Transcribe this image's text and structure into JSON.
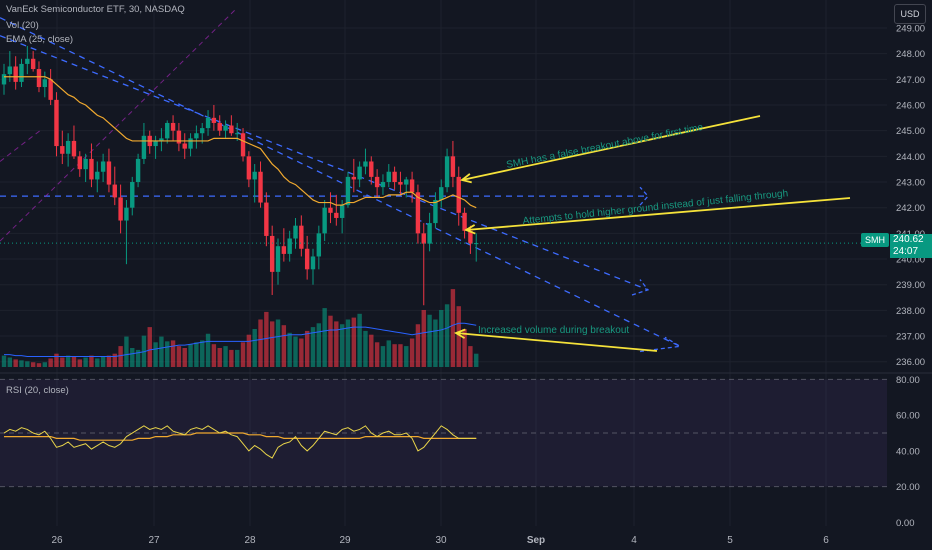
{
  "header": {
    "title": "VanEck Semiconductor ETF, 30, NASDAQ",
    "vol_label": "Vol (20)",
    "ema_label": "EMA (25, close)",
    "rsi_label": "RSI (20, close)",
    "currency_button": "USD"
  },
  "price_tag": {
    "symbol": "SMH",
    "price": "240.62",
    "countdown": "24:07"
  },
  "colors": {
    "up": "#089981",
    "down": "#f23645",
    "ema": "#f0a92f",
    "volume_ma": "#2962ff",
    "trend": "#3d6bff",
    "annotation": "#f5e23a",
    "annotation_text": "#18977f",
    "rsi_line": "#e8d44a",
    "rsi_ma": "#f0a92f",
    "background": "#131722"
  },
  "chart_data": {
    "type": "candlestick",
    "x_ticks": [
      "26",
      "27",
      "28",
      "29",
      "30",
      "Sep",
      "4",
      "5",
      "6"
    ],
    "price_ylim": [
      235.6,
      249.7
    ],
    "price_ticks": [
      "236.00",
      "237.00",
      "238.00",
      "239.00",
      "240.00",
      "241.00",
      "242.00",
      "243.00",
      "244.00",
      "245.00",
      "246.00",
      "247.00",
      "248.00",
      "249.00"
    ],
    "rsi_ylim": [
      -2,
      83
    ],
    "rsi_ticks": [
      "0.00",
      "20.00",
      "40.00",
      "60.00",
      "80.00"
    ],
    "rsi_bands": [
      20,
      50,
      80
    ],
    "current_price": 240.62,
    "candles": [
      [
        246.8,
        247.6,
        246.4,
        247.2
      ],
      [
        247.2,
        248.1,
        246.9,
        247.5
      ],
      [
        247.5,
        247.9,
        246.6,
        246.9
      ],
      [
        246.9,
        247.8,
        246.7,
        247.6
      ],
      [
        247.6,
        248.3,
        247.2,
        247.8
      ],
      [
        247.8,
        248.1,
        247.3,
        247.4
      ],
      [
        247.4,
        247.7,
        246.5,
        246.7
      ],
      [
        246.7,
        247.3,
        246.3,
        247.0
      ],
      [
        247.0,
        247.4,
        246.0,
        246.2
      ],
      [
        246.2,
        246.5,
        244.0,
        244.4
      ],
      [
        244.4,
        245.0,
        243.7,
        244.1
      ],
      [
        244.1,
        244.9,
        243.6,
        244.6
      ],
      [
        244.6,
        245.2,
        243.9,
        244.0
      ],
      [
        244.0,
        244.2,
        243.2,
        243.5
      ],
      [
        243.5,
        244.1,
        243.0,
        243.9
      ],
      [
        243.9,
        244.5,
        242.8,
        243.1
      ],
      [
        243.1,
        243.8,
        242.6,
        243.4
      ],
      [
        243.4,
        244.1,
        243.0,
        243.8
      ],
      [
        243.8,
        244.3,
        242.6,
        242.9
      ],
      [
        242.9,
        243.6,
        242.1,
        242.4
      ],
      [
        242.4,
        242.9,
        241.0,
        241.5
      ],
      [
        241.5,
        242.3,
        239.8,
        242.0
      ],
      [
        242.0,
        243.2,
        241.7,
        243.0
      ],
      [
        243.0,
        244.1,
        242.8,
        243.9
      ],
      [
        243.9,
        245.3,
        243.7,
        244.8
      ],
      [
        244.8,
        245.0,
        244.1,
        244.4
      ],
      [
        244.4,
        244.8,
        243.9,
        244.6
      ],
      [
        244.6,
        245.1,
        244.2,
        244.7
      ],
      [
        244.7,
        245.4,
        244.5,
        245.3
      ],
      [
        245.3,
        245.6,
        244.6,
        245.0
      ],
      [
        245.0,
        245.3,
        244.2,
        244.5
      ],
      [
        244.5,
        244.9,
        243.9,
        244.3
      ],
      [
        244.3,
        244.9,
        244.0,
        244.7
      ],
      [
        244.7,
        245.2,
        244.3,
        244.9
      ],
      [
        244.9,
        245.3,
        244.5,
        245.1
      ],
      [
        245.1,
        245.8,
        244.8,
        245.5
      ],
      [
        245.5,
        246.0,
        245.0,
        245.3
      ],
      [
        245.3,
        245.6,
        244.8,
        245.0
      ],
      [
        245.0,
        245.4,
        244.7,
        245.2
      ],
      [
        245.2,
        245.6,
        244.8,
        244.9
      ],
      [
        244.9,
        245.3,
        244.6,
        244.9
      ],
      [
        244.9,
        245.1,
        243.8,
        244.0
      ],
      [
        244.0,
        244.2,
        242.8,
        243.1
      ],
      [
        243.1,
        243.7,
        242.2,
        243.4
      ],
      [
        243.4,
        243.8,
        242.0,
        242.2
      ],
      [
        242.2,
        242.6,
        240.5,
        240.9
      ],
      [
        240.9,
        241.3,
        238.6,
        239.5
      ],
      [
        239.5,
        240.8,
        239.0,
        240.5
      ],
      [
        240.5,
        241.2,
        239.9,
        240.2
      ],
      [
        240.2,
        241.1,
        239.9,
        240.8
      ],
      [
        240.8,
        241.6,
        240.4,
        241.3
      ],
      [
        241.3,
        241.7,
        240.1,
        240.4
      ],
      [
        240.4,
        240.9,
        239.2,
        239.6
      ],
      [
        239.6,
        240.4,
        239.0,
        240.1
      ],
      [
        240.1,
        241.3,
        239.6,
        241.0
      ],
      [
        241.0,
        242.3,
        240.7,
        242.0
      ],
      [
        242.0,
        242.6,
        241.4,
        241.8
      ],
      [
        241.8,
        242.5,
        241.3,
        241.6
      ],
      [
        241.6,
        242.3,
        241.0,
        242.1
      ],
      [
        242.1,
        243.4,
        242.0,
        243.2
      ],
      [
        243.2,
        243.9,
        242.6,
        243.1
      ],
      [
        243.1,
        243.8,
        242.8,
        243.6
      ],
      [
        243.6,
        244.3,
        243.3,
        243.8
      ],
      [
        243.8,
        244.0,
        242.9,
        243.2
      ],
      [
        243.2,
        243.5,
        242.4,
        242.8
      ],
      [
        242.8,
        243.3,
        242.5,
        243.0
      ],
      [
        243.0,
        243.7,
        242.8,
        243.4
      ],
      [
        243.4,
        243.6,
        242.7,
        243.0
      ],
      [
        243.0,
        243.4,
        242.5,
        242.9
      ],
      [
        242.9,
        243.2,
        242.4,
        243.1
      ],
      [
        243.1,
        243.4,
        242.2,
        242.6
      ],
      [
        242.6,
        242.9,
        240.6,
        241.0
      ],
      [
        241.0,
        241.4,
        238.2,
        240.6
      ],
      [
        240.6,
        241.8,
        240.3,
        241.4
      ],
      [
        241.4,
        242.6,
        241.2,
        242.3
      ],
      [
        242.3,
        243.1,
        242.0,
        242.8
      ],
      [
        242.8,
        244.3,
        242.6,
        244.0
      ],
      [
        244.0,
        244.6,
        242.8,
        243.2
      ],
      [
        243.2,
        243.6,
        241.3,
        241.8
      ],
      [
        241.8,
        242.0,
        240.8,
        241.1
      ],
      [
        241.1,
        241.3,
        240.2,
        240.6
      ],
      [
        240.6,
        241.0,
        239.9,
        240.62
      ]
    ],
    "ema": [
      247.1,
      247.1,
      247.1,
      247.1,
      247.1,
      247.1,
      247.1,
      247.1,
      247.0,
      246.8,
      246.6,
      246.4,
      246.3,
      246.1,
      246.0,
      245.8,
      245.6,
      245.5,
      245.3,
      245.1,
      244.9,
      244.7,
      244.6,
      244.6,
      244.6,
      244.6,
      244.6,
      244.6,
      244.6,
      244.6,
      244.6,
      244.6,
      244.6,
      244.6,
      244.6,
      244.6,
      244.7,
      244.7,
      244.7,
      244.7,
      244.7,
      244.6,
      244.5,
      244.4,
      244.3,
      244.0,
      243.7,
      243.5,
      243.2,
      243.0,
      242.9,
      242.7,
      242.5,
      242.3,
      242.2,
      242.2,
      242.2,
      242.1,
      242.1,
      242.2,
      242.2,
      242.3,
      242.4,
      242.4,
      242.4,
      242.4,
      242.5,
      242.5,
      242.5,
      242.6,
      242.6,
      242.4,
      242.3,
      242.2,
      242.2,
      242.3,
      242.4,
      242.5,
      242.4,
      242.3,
      242.1,
      242.0
    ],
    "volume": [
      0.12,
      0.1,
      0.08,
      0.07,
      0.06,
      0.05,
      0.04,
      0.05,
      0.09,
      0.14,
      0.1,
      0.12,
      0.11,
      0.08,
      0.1,
      0.12,
      0.09,
      0.11,
      0.12,
      0.14,
      0.22,
      0.32,
      0.2,
      0.18,
      0.33,
      0.42,
      0.26,
      0.32,
      0.27,
      0.28,
      0.22,
      0.2,
      0.24,
      0.26,
      0.28,
      0.35,
      0.24,
      0.2,
      0.22,
      0.18,
      0.18,
      0.26,
      0.34,
      0.4,
      0.5,
      0.58,
      0.48,
      0.5,
      0.44,
      0.36,
      0.32,
      0.3,
      0.38,
      0.42,
      0.46,
      0.62,
      0.54,
      0.48,
      0.45,
      0.5,
      0.52,
      0.56,
      0.38,
      0.34,
      0.26,
      0.22,
      0.28,
      0.24,
      0.24,
      0.22,
      0.3,
      0.45,
      0.6,
      0.55,
      0.5,
      0.6,
      0.66,
      0.82,
      0.64,
      0.4,
      0.22,
      0.14
    ],
    "volume_ma": [
      0.13,
      0.13,
      0.12,
      0.12,
      0.11,
      0.11,
      0.11,
      0.11,
      0.11,
      0.11,
      0.11,
      0.11,
      0.11,
      0.11,
      0.11,
      0.11,
      0.11,
      0.11,
      0.11,
      0.11,
      0.12,
      0.13,
      0.14,
      0.15,
      0.16,
      0.18,
      0.19,
      0.2,
      0.21,
      0.22,
      0.23,
      0.23,
      0.24,
      0.25,
      0.26,
      0.27,
      0.27,
      0.27,
      0.27,
      0.27,
      0.27,
      0.27,
      0.27,
      0.28,
      0.29,
      0.3,
      0.31,
      0.32,
      0.33,
      0.34,
      0.34,
      0.34,
      0.35,
      0.36,
      0.37,
      0.38,
      0.39,
      0.39,
      0.4,
      0.41,
      0.42,
      0.42,
      0.42,
      0.41,
      0.4,
      0.39,
      0.38,
      0.37,
      0.36,
      0.35,
      0.34,
      0.35,
      0.36,
      0.37,
      0.38,
      0.39,
      0.41,
      0.44,
      0.46,
      0.46,
      0.45,
      0.44
    ],
    "rsi": [
      50,
      52,
      51,
      53,
      52,
      50,
      49,
      51,
      47,
      42,
      43,
      45,
      42,
      43,
      44,
      41,
      43,
      45,
      43,
      42,
      44,
      48,
      50,
      52,
      54,
      52,
      53,
      52,
      54,
      51,
      50,
      49,
      52,
      53,
      52,
      54,
      52,
      50,
      51,
      49,
      48,
      44,
      40,
      43,
      41,
      38,
      36,
      42,
      44,
      45,
      48,
      43,
      40,
      43,
      47,
      51,
      50,
      49,
      52,
      53,
      51,
      52,
      54,
      50,
      48,
      50,
      51,
      49,
      49,
      50,
      47,
      40,
      42,
      46,
      50,
      54,
      52,
      49,
      47,
      47,
      47,
      47
    ],
    "rsi_ma": [
      48,
      48,
      48,
      48,
      48,
      48,
      48,
      48,
      48,
      47,
      47,
      47,
      47,
      46,
      46,
      46,
      46,
      46,
      46,
      46,
      46,
      46,
      46,
      47,
      47,
      47,
      48,
      48,
      48,
      49,
      49,
      49,
      49,
      50,
      50,
      50,
      50,
      50,
      50,
      50,
      50,
      50,
      49,
      49,
      49,
      48,
      48,
      48,
      47,
      47,
      47,
      47,
      47,
      47,
      47,
      47,
      47,
      47,
      47,
      47,
      47,
      47,
      48,
      48,
      48,
      48,
      48,
      48,
      48,
      48,
      48,
      48,
      47,
      47,
      47,
      47,
      47,
      47,
      47,
      47,
      47,
      47
    ],
    "annotations": [
      {
        "text": "SMH has a false breakout above for first time",
        "rotate": -11
      },
      {
        "text": "Attempts to hold higher ground instead of just falling through",
        "rotate": -6
      },
      {
        "text": "Increased volume during breakout",
        "rotate": 0
      }
    ]
  }
}
